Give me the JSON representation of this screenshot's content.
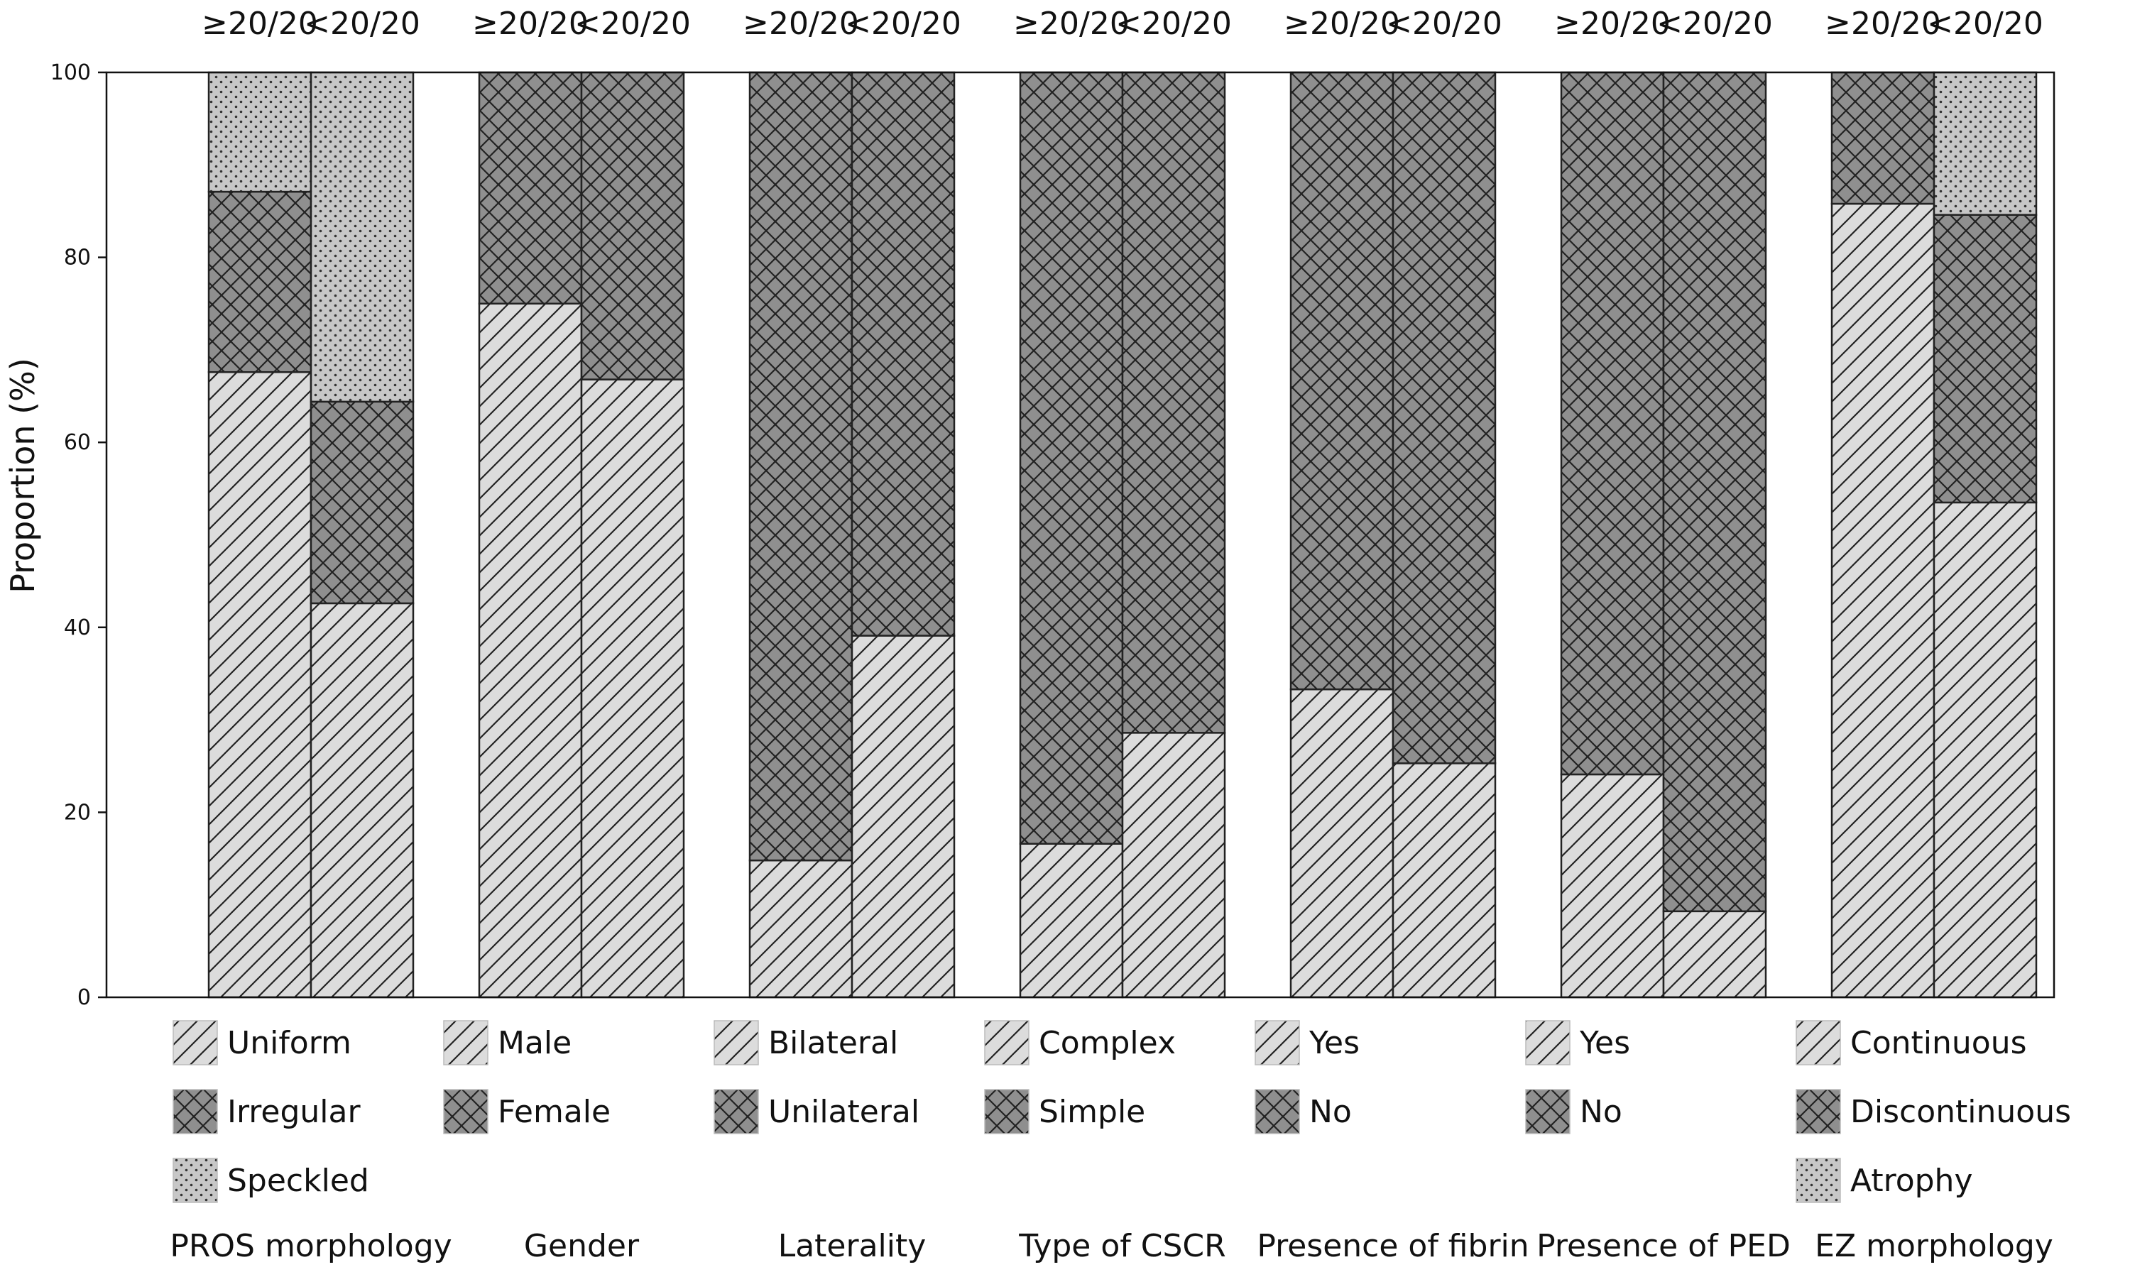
{
  "chart_data": {
    "type": "bar",
    "stacked": true,
    "ylabel": "Proportion (%)",
    "ylim": [
      0,
      100
    ],
    "yticks": [
      0,
      20,
      40,
      60,
      80,
      100
    ],
    "bar_labels": [
      "≥20/20",
      "<20/20"
    ],
    "colors": {
      "light": "#dcdcdc",
      "dark": "#8f8f8f",
      "speckle": "#c7c7c7",
      "stroke": "#222222"
    },
    "groups": [
      {
        "title": "PROS morphology",
        "segments": [
          {
            "name": "Uniform",
            "pattern": "diagonal",
            "values": [
              67.6,
              42.6
            ]
          },
          {
            "name": "Irregular",
            "pattern": "crosshatch",
            "values": [
              19.5,
              21.8
            ]
          },
          {
            "name": "Speckled",
            "pattern": "dots",
            "values": [
              12.9,
              35.6
            ]
          }
        ]
      },
      {
        "title": "Gender",
        "segments": [
          {
            "name": "Male",
            "pattern": "diagonal",
            "values": [
              75.0,
              66.8
            ]
          },
          {
            "name": "Female",
            "pattern": "crosshatch",
            "values": [
              25.0,
              33.2
            ]
          }
        ]
      },
      {
        "title": "Laterality",
        "segments": [
          {
            "name": "Bilateral",
            "pattern": "diagonal",
            "values": [
              14.8,
              39.1
            ]
          },
          {
            "name": "Unilateral",
            "pattern": "crosshatch",
            "values": [
              85.2,
              60.9
            ]
          }
        ]
      },
      {
        "title": "Type of CSCR",
        "segments": [
          {
            "name": "Complex",
            "pattern": "diagonal",
            "values": [
              16.6,
              28.6
            ]
          },
          {
            "name": "Simple",
            "pattern": "crosshatch",
            "values": [
              83.4,
              71.4
            ]
          }
        ]
      },
      {
        "title": "Presence of fibrin",
        "segments": [
          {
            "name": "Yes",
            "pattern": "diagonal",
            "values": [
              33.3,
              25.3
            ]
          },
          {
            "name": "No",
            "pattern": "crosshatch",
            "values": [
              66.7,
              74.7
            ]
          }
        ]
      },
      {
        "title": "Presence of PED",
        "segments": [
          {
            "name": "Yes",
            "pattern": "diagonal",
            "values": [
              24.1,
              9.3
            ]
          },
          {
            "name": "No",
            "pattern": "crosshatch",
            "values": [
              75.9,
              90.7
            ]
          }
        ]
      },
      {
        "title": "EZ morphology",
        "segments": [
          {
            "name": "Continuous",
            "pattern": "diagonal",
            "values": [
              85.8,
              53.5
            ]
          },
          {
            "name": "Discontinuous",
            "pattern": "crosshatch",
            "values": [
              14.2,
              31.1
            ]
          },
          {
            "name": "Atrophy",
            "pattern": "dots",
            "values": [
              0,
              15.4
            ]
          }
        ]
      }
    ]
  }
}
